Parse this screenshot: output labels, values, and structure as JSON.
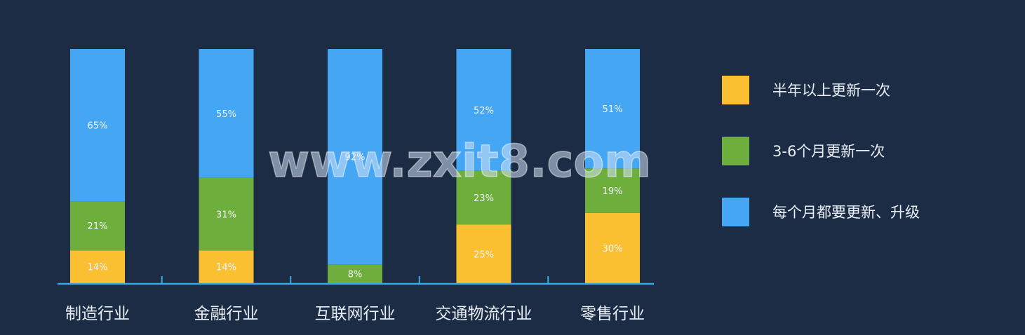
{
  "chart_data": {
    "type": "bar",
    "stacked": true,
    "categories": [
      "制造行业",
      "金融行业",
      "互联网行业",
      "交通物流行业",
      "零售行业"
    ],
    "series": [
      {
        "name": "半年以上更新一次",
        "color": "#fbbf32",
        "values": [
          14,
          14,
          0,
          25,
          30
        ]
      },
      {
        "name": "3-6个月更新一次",
        "color": "#6eae3c",
        "values": [
          21,
          31,
          8,
          23,
          19
        ]
      },
      {
        "name": "每个月都要更新、升级",
        "color": "#45a7f4",
        "values": [
          65,
          55,
          92,
          52,
          51
        ]
      }
    ],
    "value_suffix": "%",
    "ylim": [
      0,
      100
    ],
    "legend_position": "right",
    "grid": false
  },
  "watermark": "www.zxit8.com"
}
